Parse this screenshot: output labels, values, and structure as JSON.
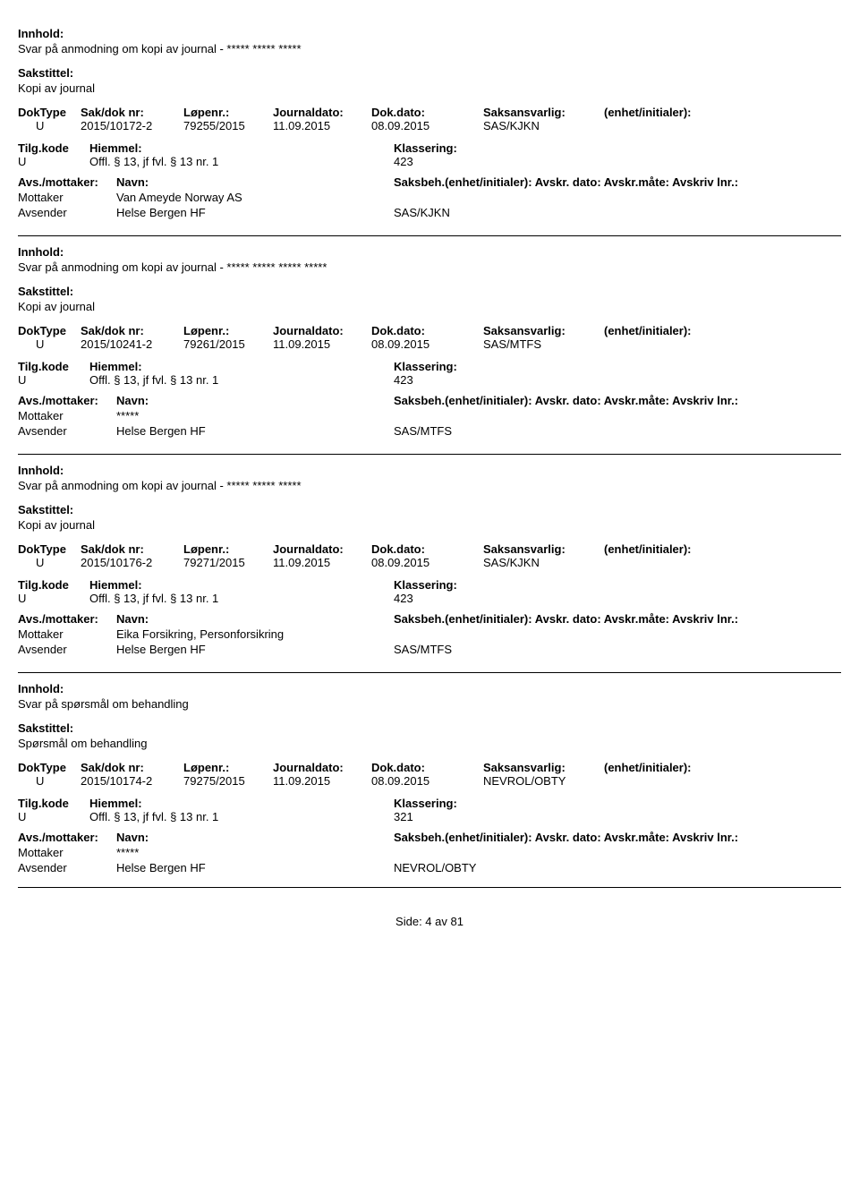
{
  "labels": {
    "innhold": "Innhold:",
    "sakstittel": "Sakstittel:",
    "doktype": "DokType",
    "sakdok": "Sak/dok nr:",
    "lopenr": "Løpenr.:",
    "journaldato": "Journaldato:",
    "dokdato": "Dok.dato:",
    "saksansvarlig": "Saksansvarlig:",
    "enhet": "(enhet/initialer):",
    "tilgkode": "Tilg.kode",
    "hjemmel": "Hiemmel:",
    "klassering": "Klassering:",
    "avsmottaker": "Avs./mottaker:",
    "navn": "Navn:",
    "saksbeh_full": "Saksbeh.(enhet/initialer): Avskr. dato:  Avskr.måte:  Avskriv lnr.:"
  },
  "records": [
    {
      "innhold": "Svar på anmodning om kopi av journal - ***** ***** *****",
      "sakstittel": "Kopi av journal",
      "doktype": "U",
      "sakdok": "2015/10172-2",
      "lopenr": "79255/2015",
      "journaldato": "11.09.2015",
      "dokdato": "08.09.2015",
      "saksansvarlig": "SAS/KJKN",
      "tilgkode": "U",
      "hjemmel": "Offl. § 13, jf fvl. § 13 nr. 1",
      "klassering": "423",
      "mottaker_label": "Mottaker",
      "mottaker_navn": "Van Ameyde Norway AS",
      "avsender_label": "Avsender",
      "avsender_navn": "Helse Bergen HF",
      "saksbeh_unit": "SAS/KJKN"
    },
    {
      "innhold": "Svar på anmodning om kopi av journal - ***** ***** ***** *****",
      "sakstittel": "Kopi av journal",
      "doktype": "U",
      "sakdok": "2015/10241-2",
      "lopenr": "79261/2015",
      "journaldato": "11.09.2015",
      "dokdato": "08.09.2015",
      "saksansvarlig": "SAS/MTFS",
      "tilgkode": "U",
      "hjemmel": "Offl. § 13, jf fvl. § 13 nr. 1",
      "klassering": "423",
      "mottaker_label": "Mottaker",
      "mottaker_navn": "*****",
      "avsender_label": "Avsender",
      "avsender_navn": "Helse Bergen HF",
      "saksbeh_unit": "SAS/MTFS"
    },
    {
      "innhold": "Svar på anmodning om kopi av journal - ***** ***** *****",
      "sakstittel": "Kopi av journal",
      "doktype": "U",
      "sakdok": "2015/10176-2",
      "lopenr": "79271/2015",
      "journaldato": "11.09.2015",
      "dokdato": "08.09.2015",
      "saksansvarlig": "SAS/KJKN",
      "tilgkode": "U",
      "hjemmel": "Offl. § 13, jf fvl. § 13 nr. 1",
      "klassering": "423",
      "mottaker_label": "Mottaker",
      "mottaker_navn": "Eika Forsikring, Personforsikring",
      "avsender_label": "Avsender",
      "avsender_navn": "Helse Bergen HF",
      "saksbeh_unit": "SAS/MTFS"
    },
    {
      "innhold": "Svar på spørsmål om behandling",
      "sakstittel": "Spørsmål om behandling",
      "doktype": "U",
      "sakdok": "2015/10174-2",
      "lopenr": "79275/2015",
      "journaldato": "11.09.2015",
      "dokdato": "08.09.2015",
      "saksansvarlig": "NEVROL/OBTY",
      "tilgkode": "U",
      "hjemmel": "Offl. § 13, jf fvl. § 13 nr. 1",
      "klassering": "321",
      "mottaker_label": "Mottaker",
      "mottaker_navn": "*****",
      "avsender_label": "Avsender",
      "avsender_navn": "Helse Bergen HF",
      "saksbeh_unit": "NEVROL/OBTY"
    }
  ],
  "footer": "Side:  4 av  81"
}
